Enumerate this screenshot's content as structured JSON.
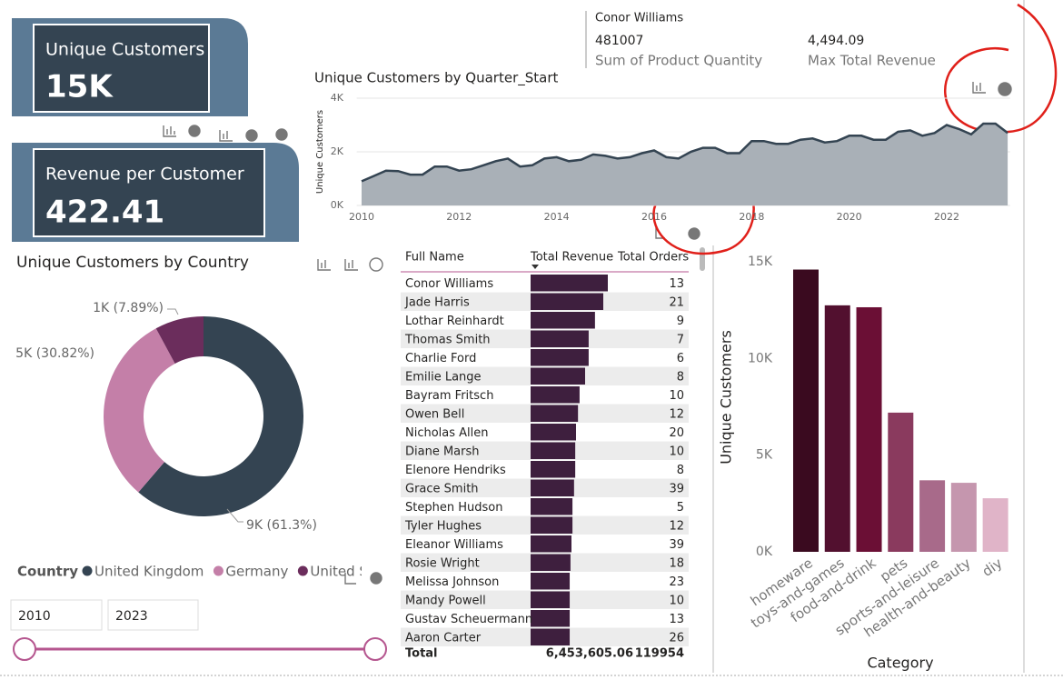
{
  "cards": [
    {
      "label": "Unique Customers",
      "value": "15K"
    },
    {
      "label": "Revenue per Customer",
      "value": "422.41"
    }
  ],
  "tooltip": {
    "name": "Conor Williams",
    "items": [
      {
        "value": "481007",
        "label": "Sum of Product Quantity"
      },
      {
        "value": "4,494.09",
        "label": "Max Total Revenue"
      }
    ]
  },
  "chart_data": [
    {
      "type": "area",
      "title": "Unique Customers by Quarter_Start",
      "y_label": "Unique Customers",
      "color": "#344452",
      "fill": "#a9b0b7",
      "x": [
        2010,
        2010.25,
        2010.5,
        2010.75,
        2011,
        2011.25,
        2011.5,
        2011.75,
        2012,
        2012.25,
        2012.5,
        2012.75,
        2013,
        2013.25,
        2013.5,
        2013.75,
        2014,
        2014.25,
        2014.5,
        2014.75,
        2015,
        2015.25,
        2015.5,
        2015.75,
        2016,
        2016.25,
        2016.5,
        2016.75,
        2017,
        2017.25,
        2017.5,
        2017.75,
        2018,
        2018.25,
        2018.5,
        2018.75,
        2019,
        2019.25,
        2019.5,
        2019.75,
        2020,
        2020.25,
        2020.5,
        2020.75,
        2021,
        2021.25,
        2021.5,
        2021.75,
        2022,
        2022.25,
        2022.5,
        2022.75,
        2023,
        2023.25
      ],
      "values": [
        900,
        1100,
        1300,
        1280,
        1150,
        1150,
        1450,
        1450,
        1300,
        1350,
        1500,
        1650,
        1750,
        1450,
        1500,
        1750,
        1800,
        1650,
        1700,
        1900,
        1850,
        1750,
        1800,
        1950,
        2050,
        1800,
        1750,
        2000,
        2150,
        2150,
        1950,
        1950,
        2400,
        2400,
        2300,
        2300,
        2450,
        2500,
        2350,
        2400,
        2600,
        2600,
        2450,
        2450,
        2750,
        2800,
        2600,
        2700,
        3000,
        2850,
        2650,
        3050,
        3050,
        2700
      ],
      "xlim": [
        2009.9,
        2023.3
      ],
      "xticks": [
        2010,
        2012,
        2014,
        2016,
        2018,
        2020,
        2022
      ],
      "ylim": [
        0,
        4000
      ],
      "yticks": [
        {
          "value": 0,
          "label": "0K"
        },
        {
          "value": 2000,
          "label": "2K"
        },
        {
          "value": 4000,
          "label": "4K"
        }
      ]
    },
    {
      "type": "donut",
      "title": "Unique Customers by Country",
      "legend_title": "Country",
      "categories": [
        "United Kingdom",
        "Germany",
        "United States"
      ],
      "values": [
        61.3,
        30.82,
        7.89
      ],
      "value_labels": [
        "9K (61.3%)",
        "5K (30.82%)",
        "1K (7.89%)"
      ],
      "colors": [
        "#344452",
        "#c47fa8",
        "#6b2d5c"
      ]
    },
    {
      "type": "bar",
      "x_label": "Category",
      "y_label": "Unique Customers",
      "categories": [
        "homeware",
        "toys-and-games",
        "food-and-drink",
        "pets",
        "sports-and-leisure",
        "health-and-beauty",
        "diy"
      ],
      "values": [
        14600,
        12750,
        12650,
        7200,
        3700,
        3570,
        2770
      ],
      "colors": [
        "#3a0a1f",
        "#52102f",
        "#6b0f35",
        "#8a3a5e",
        "#a86a8a",
        "#c596ae",
        "#e0b4c8"
      ],
      "ylim": [
        0,
        15800
      ],
      "yticks": [
        {
          "value": 0,
          "label": "0K"
        },
        {
          "value": 5000,
          "label": "5K"
        },
        {
          "value": 10000,
          "label": "10K"
        },
        {
          "value": 15000,
          "label": "15K"
        }
      ]
    }
  ],
  "table": {
    "columns": [
      "Full Name",
      "Total Revenue",
      "Total Orders"
    ],
    "bar_color": "#3e1f3e",
    "rows": [
      [
        "Conor Williams",
        19550,
        13
      ],
      [
        "Jade Harris",
        18400,
        21
      ],
      [
        "Lothar Reinhardt",
        16300,
        9
      ],
      [
        "Thomas Smith",
        14700,
        7
      ],
      [
        "Charlie Ford",
        14700,
        6
      ],
      [
        "Emilie Lange",
        13800,
        8
      ],
      [
        "Bayram Fritsch",
        12400,
        10
      ],
      [
        "Owen Bell",
        12000,
        12
      ],
      [
        "Nicholas Allen",
        11500,
        20
      ],
      [
        "Diane Marsh",
        11300,
        10
      ],
      [
        "Elenore Hendriks",
        11300,
        8
      ],
      [
        "Grace Smith",
        11000,
        39
      ],
      [
        "Stephen Hudson",
        10600,
        5
      ],
      [
        "Tyler Hughes",
        10600,
        12
      ],
      [
        "Eleanor Williams",
        10350,
        39
      ],
      [
        "Rosie Wright",
        10100,
        18
      ],
      [
        "Melissa Johnson",
        9900,
        23
      ],
      [
        "Mandy Powell",
        9900,
        10
      ],
      [
        "Gustav Scheuermann",
        9900,
        13
      ],
      [
        "Aaron Carter",
        9900,
        26
      ]
    ],
    "total": [
      "Total",
      "6,453,605.06",
      119954
    ]
  },
  "slicer": {
    "from": 2010,
    "to": 2023
  }
}
